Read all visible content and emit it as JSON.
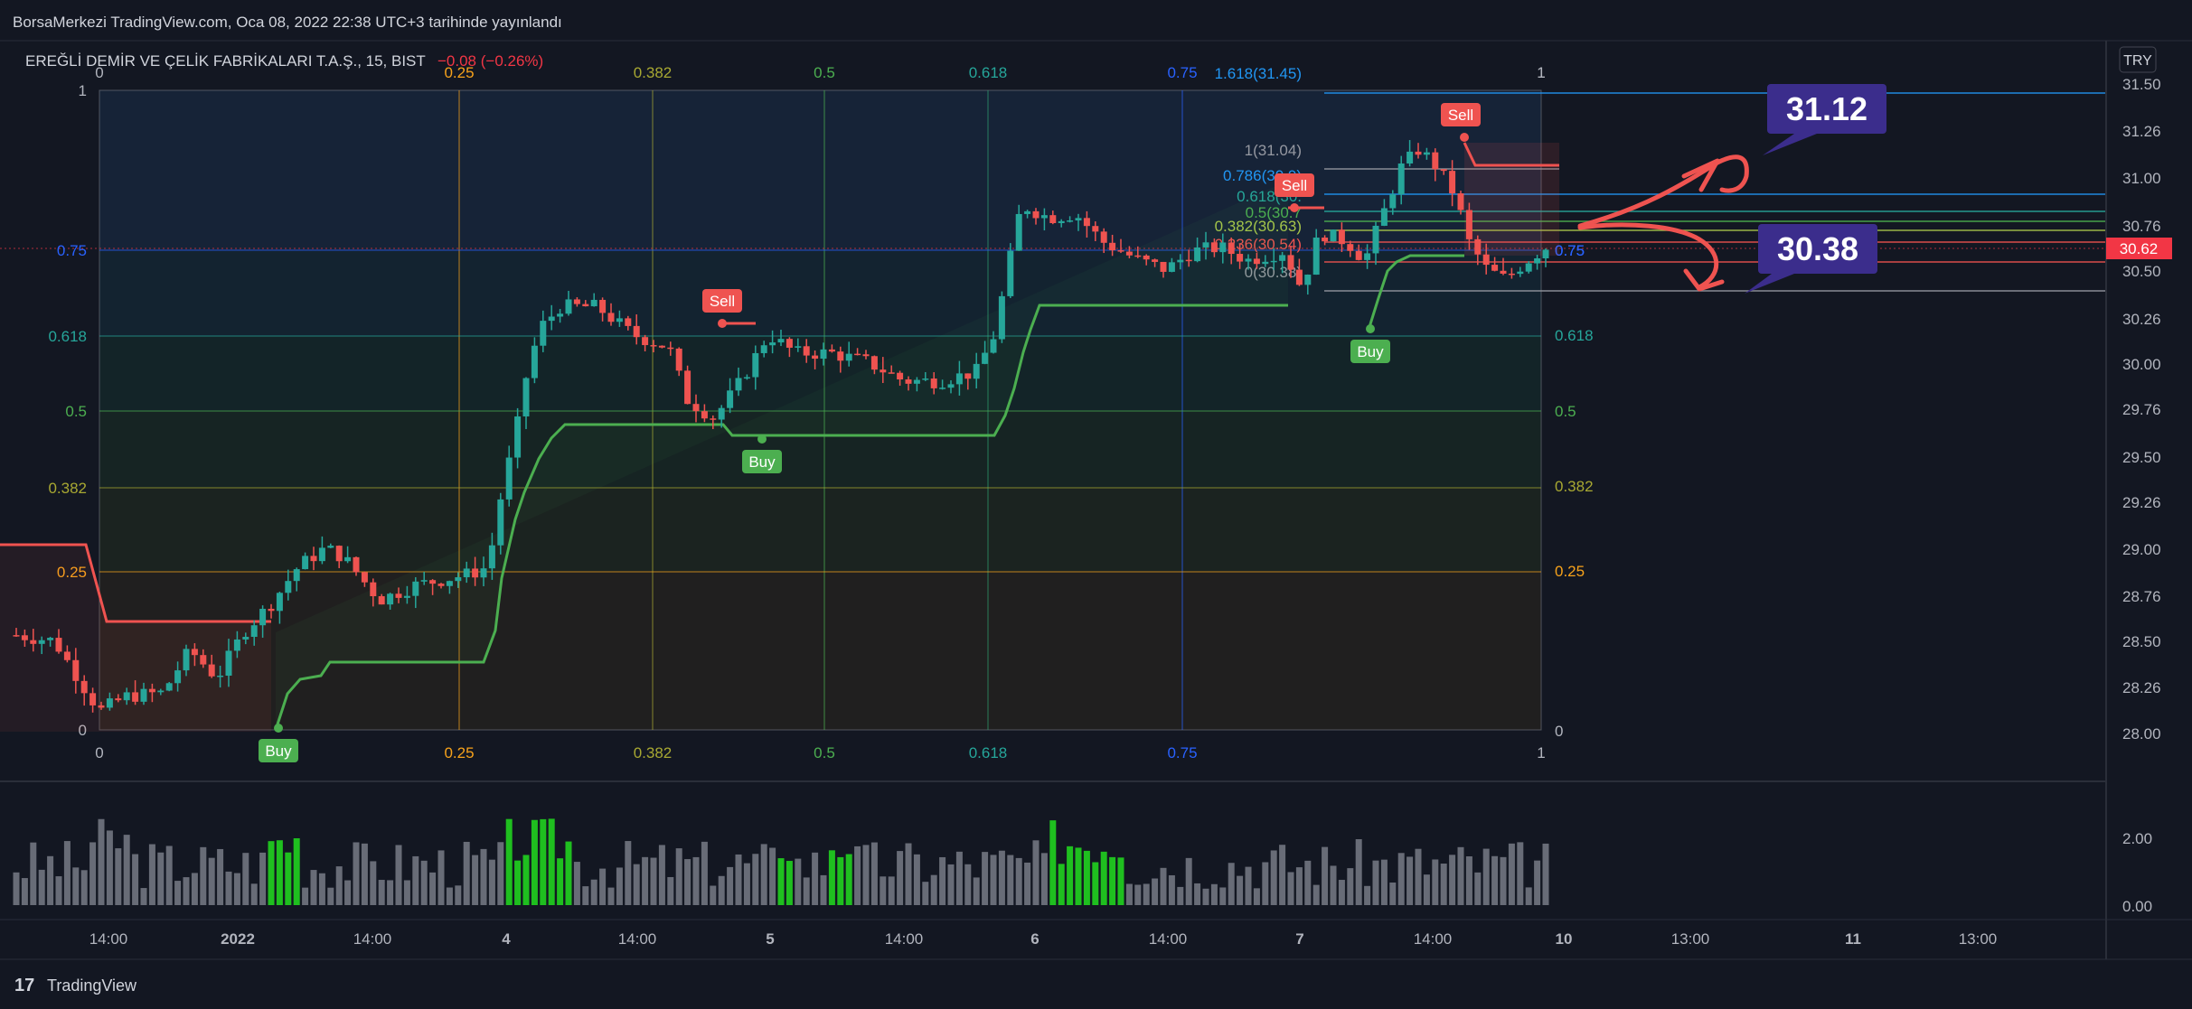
{
  "header": {
    "published": "BorsaMerkezi TradingView.com, Oca 08, 2022 22:38 UTC+3 tarihinde yayınlandı"
  },
  "symbol": {
    "name": "EREĞLİ DEMİR VE ÇELİK FABRİKALARI T.A.Ş., 15, BIST",
    "change": "−0.08 (−0.26%)"
  },
  "price_axis": {
    "currency": "TRY",
    "ticks": [
      "31.50",
      "31.26",
      "31.00",
      "30.76",
      "30.50",
      "30.26",
      "30.00",
      "29.76",
      "29.50",
      "29.26",
      "29.00",
      "28.76",
      "28.50",
      "28.26",
      "28.00"
    ],
    "last_price": "30.62"
  },
  "volume_axis": {
    "ticks": [
      "2.00",
      "0.00"
    ]
  },
  "time_axis": {
    "labels": [
      "14:00",
      "2022",
      "14:00",
      "4",
      "14:00",
      "5",
      "14:00",
      "6",
      "14:00",
      "7",
      "14:00",
      "10",
      "13:00",
      "11",
      "13:00"
    ]
  },
  "fib_large": {
    "top_labels": [
      "0",
      "0.25",
      "0.382",
      "0.5",
      "0.618",
      "0.75",
      "1"
    ],
    "bottom_labels": [
      "0",
      "0.25",
      "0.382",
      "0.5",
      "0.618",
      "0.75",
      "1"
    ],
    "left_labels": [
      "1",
      "0.75",
      "0.618",
      "0.5",
      "0.382",
      "0.25",
      "0"
    ],
    "right_labels": [
      "0.75",
      "0.618",
      "0.5",
      "0.382",
      "0.25",
      "0"
    ]
  },
  "fib_small": {
    "labels": [
      "1.618(31.45)",
      "1(31.04)",
      "0.786(30.9)",
      "0.618(30.",
      "0.5(30.7",
      "0.382(30.63)",
      "0.236(30.54)",
      "0(30.38)",
      "1",
      "0.75"
    ]
  },
  "signals": {
    "buy": "Buy",
    "sell": "Sell"
  },
  "annotations": {
    "target_up": "31.12",
    "target_down": "30.38"
  },
  "footer": {
    "brand": "TradingView"
  },
  "colors": {
    "background": "#131722",
    "up": "#26a69a",
    "down": "#ef5350",
    "stop_up": "#4caf50",
    "stop_down": "#f05350",
    "callout": "#3b2d8c"
  },
  "chart_data": {
    "type": "candlestick",
    "symbol": "EREĞLİ DEMİR VE ÇELİK FABRİKALARI T.A.Ş.",
    "interval": "15",
    "exchange": "BIST",
    "y_range": [
      27.92,
      31.6
    ],
    "last_price": 30.62,
    "price_levels": [
      31.45,
      31.12,
      31.04,
      30.9,
      30.63,
      30.54,
      30.38
    ],
    "volume_series": {
      "colored_green_ranges": [
        [
          30,
          33
        ],
        [
          58,
          65
        ],
        [
          90,
          91
        ],
        [
          96,
          98
        ],
        [
          122,
          130
        ]
      ]
    }
  }
}
